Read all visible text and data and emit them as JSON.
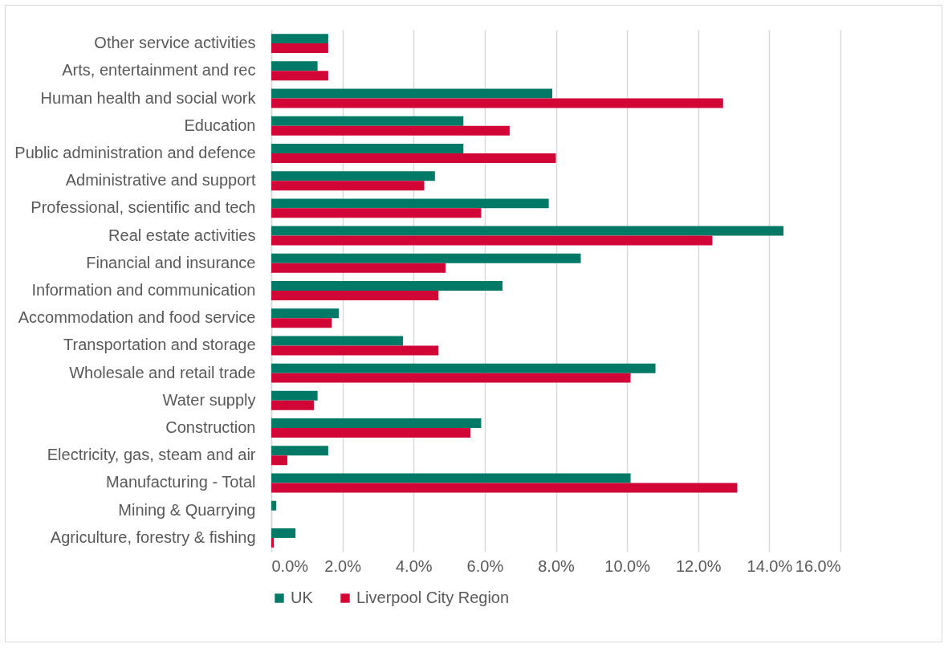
{
  "chart_data": {
    "type": "bar",
    "orientation": "horizontal",
    "categories": [
      "Other service activities",
      "Arts, entertainment and rec",
      "Human health and social work",
      "Education",
      "Public administration and defence",
      "Administrative and support",
      "Professional, scientific and tech",
      "Real estate activities",
      "Financial and insurance",
      "Information and communication",
      "Accommodation and food service",
      "Transportation and storage",
      "Wholesale and retail trade",
      "Water supply",
      "Construction",
      "Electricity, gas, steam and air",
      "Manufacturing - Total",
      "Mining & Quarrying",
      "Agriculture, forestry & fishing"
    ],
    "series": [
      {
        "name": "UK",
        "color": "#007a66",
        "values": [
          1.6,
          1.3,
          7.9,
          5.4,
          5.4,
          4.6,
          7.8,
          14.4,
          8.7,
          6.5,
          1.9,
          3.7,
          10.8,
          1.3,
          5.9,
          1.6,
          10.1,
          0.14,
          0.68
        ]
      },
      {
        "name": "Liverpool City Region",
        "color": "#d20537",
        "values": [
          1.6,
          1.6,
          12.7,
          6.7,
          8.0,
          4.3,
          5.9,
          12.4,
          4.9,
          4.7,
          1.7,
          4.7,
          10.1,
          1.2,
          5.6,
          0.45,
          13.1,
          null,
          0.07
        ]
      }
    ],
    "xlim": [
      0,
      16
    ],
    "xticks": [
      {
        "value": 0,
        "label": "0.0%"
      },
      {
        "value": 2,
        "label": "2.0%"
      },
      {
        "value": 4,
        "label": "4.0%"
      },
      {
        "value": 6,
        "label": "6.0%"
      },
      {
        "value": 8,
        "label": "8.0%"
      },
      {
        "value": 10,
        "label": "10.0%"
      },
      {
        "value": 12,
        "label": "12.0%"
      },
      {
        "value": 14,
        "label": "14.0%"
      },
      {
        "value": 16,
        "label": "16.0%"
      }
    ],
    "grid": "x",
    "legend": "bottom"
  }
}
